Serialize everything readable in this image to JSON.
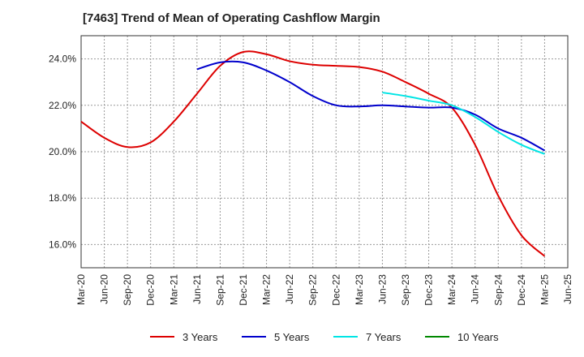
{
  "chart_data": {
    "type": "line",
    "title": "[7463]  Trend of Mean of Operating Cashflow Margin",
    "xlabel": "",
    "ylabel": "",
    "x_ticks": [
      "Mar-20",
      "Jun-20",
      "Sep-20",
      "Dec-20",
      "Mar-21",
      "Jun-21",
      "Sep-21",
      "Dec-21",
      "Mar-22",
      "Jun-22",
      "Sep-22",
      "Dec-22",
      "Mar-23",
      "Jun-23",
      "Sep-23",
      "Dec-23",
      "Mar-24",
      "Jun-24",
      "Sep-24",
      "Dec-24",
      "Mar-25",
      "Jun-25"
    ],
    "y_ticks": [
      "16.0%",
      "18.0%",
      "20.0%",
      "22.0%",
      "24.0%"
    ],
    "y_tick_values": [
      16,
      18,
      20,
      22,
      24
    ],
    "ylim": [
      15,
      25
    ],
    "grid": true,
    "legend_position": "bottom",
    "series": [
      {
        "name": "3 Years",
        "color": "#dd0000",
        "x": [
          "Mar-20",
          "Jun-20",
          "Sep-20",
          "Dec-20",
          "Mar-21",
          "Jun-21",
          "Sep-21",
          "Dec-21",
          "Mar-22",
          "Jun-22",
          "Sep-22",
          "Dec-22",
          "Mar-23",
          "Jun-23",
          "Sep-23",
          "Dec-23",
          "Mar-24",
          "Jun-24",
          "Sep-24",
          "Dec-24",
          "Mar-25"
        ],
        "values": [
          21.3,
          20.6,
          20.2,
          20.4,
          21.3,
          22.5,
          23.7,
          24.3,
          24.2,
          23.9,
          23.75,
          23.7,
          23.65,
          23.45,
          23.0,
          22.5,
          21.9,
          20.3,
          18.1,
          16.4,
          15.5
        ]
      },
      {
        "name": "5 Years",
        "color": "#0000cc",
        "x": [
          "Jun-21",
          "Sep-21",
          "Dec-21",
          "Mar-22",
          "Jun-22",
          "Sep-22",
          "Dec-22",
          "Mar-23",
          "Jun-23",
          "Sep-23",
          "Dec-23",
          "Mar-24",
          "Jun-24",
          "Sep-24",
          "Dec-24",
          "Mar-25"
        ],
        "values": [
          23.55,
          23.85,
          23.85,
          23.5,
          23.0,
          22.4,
          22.0,
          21.95,
          22.0,
          21.95,
          21.9,
          21.9,
          21.6,
          21.0,
          20.6,
          20.05
        ]
      },
      {
        "name": "7 Years",
        "color": "#00e5e5",
        "x": [
          "Jun-23",
          "Sep-23",
          "Dec-23",
          "Mar-24",
          "Jun-24",
          "Sep-24",
          "Dec-24",
          "Mar-25"
        ],
        "values": [
          22.55,
          22.4,
          22.2,
          22.0,
          21.5,
          20.85,
          20.3,
          19.9
        ]
      },
      {
        "name": "10 Years",
        "color": "#008800",
        "x": [],
        "values": []
      }
    ]
  }
}
